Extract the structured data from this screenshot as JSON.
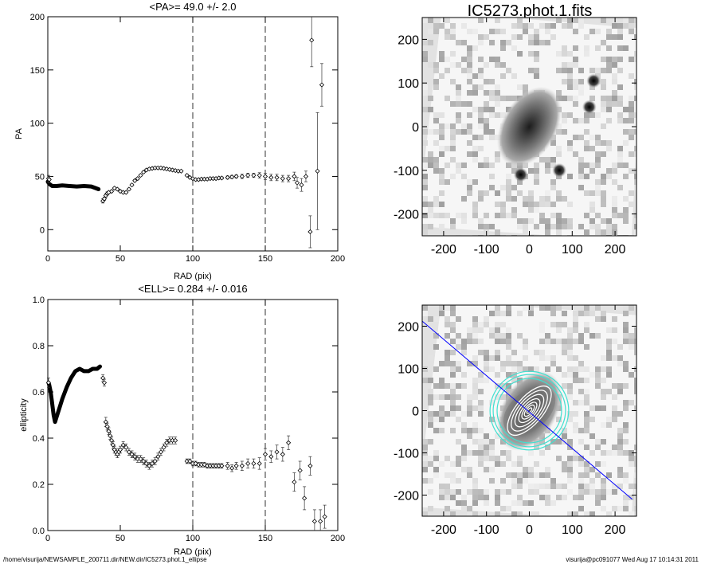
{
  "footer": {
    "left": "/home/visurija/NEWSAMPLE_200711.dir/NEW.dir/IC5273.phot.1_ellipse",
    "right": "visurija@pc091077  Wed Aug 17 10:14:31 2011"
  },
  "chart_data": [
    {
      "type": "scatter",
      "title": "<PA>=  49.0 +/-   2.0",
      "xlabel": "RAD (pix)",
      "ylabel": "PA",
      "xlim": [
        0,
        200
      ],
      "ylim": [
        -20,
        200
      ],
      "xticks": [
        0,
        50,
        100,
        150,
        200
      ],
      "yticks": [
        0,
        50,
        100,
        150,
        200
      ],
      "vlines": [
        100,
        150
      ],
      "marker": "diamond",
      "dense_curve": [
        [
          0,
          45
        ],
        [
          1,
          43
        ],
        [
          3,
          41
        ],
        [
          6,
          41
        ],
        [
          10,
          41.5
        ],
        [
          15,
          41
        ],
        [
          20,
          40.5
        ],
        [
          25,
          41
        ],
        [
          30,
          40.5
        ],
        [
          35,
          38
        ]
      ],
      "points": [
        {
          "x": 0.5,
          "y": 48,
          "e": 3
        },
        {
          "x": 1,
          "y": 47,
          "e": 3
        },
        {
          "x": 38,
          "y": 27,
          "e": 2
        },
        {
          "x": 39,
          "y": 29,
          "e": 1.5
        },
        {
          "x": 40,
          "y": 32,
          "e": 1.5
        },
        {
          "x": 41,
          "y": 34,
          "e": 1.5
        },
        {
          "x": 42,
          "y": 35,
          "e": 1
        },
        {
          "x": 44,
          "y": 36,
          "e": 1
        },
        {
          "x": 46,
          "y": 39,
          "e": 1
        },
        {
          "x": 48,
          "y": 38,
          "e": 1
        },
        {
          "x": 50,
          "y": 36,
          "e": 1
        },
        {
          "x": 52,
          "y": 35,
          "e": 1
        },
        {
          "x": 54,
          "y": 35,
          "e": 1
        },
        {
          "x": 56,
          "y": 38,
          "e": 1
        },
        {
          "x": 58,
          "y": 42,
          "e": 1
        },
        {
          "x": 60,
          "y": 46,
          "e": 1
        },
        {
          "x": 62,
          "y": 48,
          "e": 1
        },
        {
          "x": 64,
          "y": 51,
          "e": 1
        },
        {
          "x": 66,
          "y": 54,
          "e": 1
        },
        {
          "x": 68,
          "y": 56,
          "e": 1
        },
        {
          "x": 70,
          "y": 57,
          "e": 1
        },
        {
          "x": 72,
          "y": 57.5,
          "e": 1
        },
        {
          "x": 74,
          "y": 58,
          "e": 1
        },
        {
          "x": 76,
          "y": 58,
          "e": 1
        },
        {
          "x": 78,
          "y": 58,
          "e": 1
        },
        {
          "x": 80,
          "y": 57.5,
          "e": 1
        },
        {
          "x": 82,
          "y": 57,
          "e": 1
        },
        {
          "x": 84,
          "y": 56.5,
          "e": 1
        },
        {
          "x": 86,
          "y": 56,
          "e": 1
        },
        {
          "x": 88,
          "y": 55.5,
          "e": 1
        },
        {
          "x": 90,
          "y": 55,
          "e": 1
        },
        {
          "x": 92,
          "y": 55,
          "e": 1
        },
        {
          "x": 96,
          "y": 51,
          "e": 1
        },
        {
          "x": 98,
          "y": 49,
          "e": 1
        },
        {
          "x": 100,
          "y": 48,
          "e": 1
        },
        {
          "x": 102,
          "y": 47,
          "e": 1
        },
        {
          "x": 104,
          "y": 47,
          "e": 1
        },
        {
          "x": 106,
          "y": 47.5,
          "e": 1
        },
        {
          "x": 108,
          "y": 47.5,
          "e": 1
        },
        {
          "x": 110,
          "y": 47.5,
          "e": 1
        },
        {
          "x": 112,
          "y": 48,
          "e": 1
        },
        {
          "x": 114,
          "y": 48,
          "e": 1
        },
        {
          "x": 116,
          "y": 48,
          "e": 1
        },
        {
          "x": 118,
          "y": 48.5,
          "e": 1
        },
        {
          "x": 120,
          "y": 48.5,
          "e": 1
        },
        {
          "x": 124,
          "y": 49,
          "e": 1.5
        },
        {
          "x": 127,
          "y": 49.5,
          "e": 1.5
        },
        {
          "x": 130,
          "y": 50,
          "e": 1.5
        },
        {
          "x": 134,
          "y": 50,
          "e": 2
        },
        {
          "x": 138,
          "y": 51,
          "e": 2
        },
        {
          "x": 142,
          "y": 51,
          "e": 2
        },
        {
          "x": 146,
          "y": 51,
          "e": 2.5
        },
        {
          "x": 150,
          "y": 50,
          "e": 3
        },
        {
          "x": 154,
          "y": 49,
          "e": 3
        },
        {
          "x": 158,
          "y": 49,
          "e": 3
        },
        {
          "x": 162,
          "y": 48,
          "e": 3
        },
        {
          "x": 166,
          "y": 48,
          "e": 3
        },
        {
          "x": 170,
          "y": 50,
          "e": 4
        },
        {
          "x": 172,
          "y": 44,
          "e": 5
        },
        {
          "x": 175,
          "y": 42,
          "e": 6
        },
        {
          "x": 178,
          "y": 50,
          "e": 5
        },
        {
          "x": 181,
          "y": -2,
          "e": 15
        },
        {
          "x": 182,
          "y": 178,
          "e": 25
        },
        {
          "x": 186,
          "y": 55,
          "e": 55
        },
        {
          "x": 189,
          "y": 136,
          "e": 20
        }
      ]
    },
    {
      "type": "scatter",
      "title": "<ELL>= 0.284 +/-  0.016",
      "xlabel": "RAD (pix)",
      "ylabel": "ellipticity",
      "xlim": [
        0,
        200
      ],
      "ylim": [
        0,
        1
      ],
      "xticks": [
        0,
        50,
        100,
        150,
        200
      ],
      "yticks": [
        0.0,
        0.2,
        0.4,
        0.6,
        0.8,
        1.0
      ],
      "vlines": [
        100,
        150
      ],
      "marker": "diamond",
      "dense_curve": [
        [
          0.5,
          0.64
        ],
        [
          1,
          0.63
        ],
        [
          2,
          0.6
        ],
        [
          3,
          0.55
        ],
        [
          4,
          0.5
        ],
        [
          5,
          0.47
        ],
        [
          6,
          0.49
        ],
        [
          8,
          0.53
        ],
        [
          10,
          0.57
        ],
        [
          13,
          0.62
        ],
        [
          16,
          0.66
        ],
        [
          19,
          0.69
        ],
        [
          22,
          0.7
        ],
        [
          25,
          0.69
        ],
        [
          28,
          0.69
        ],
        [
          31,
          0.7
        ],
        [
          34,
          0.7
        ],
        [
          36,
          0.71
        ]
      ],
      "points": [
        {
          "x": 0.5,
          "y": 0.64,
          "e": 0.02
        },
        {
          "x": 38,
          "y": 0.66,
          "e": 0.015
        },
        {
          "x": 39,
          "y": 0.64,
          "e": 0.015
        },
        {
          "x": 40,
          "y": 0.47,
          "e": 0.02
        },
        {
          "x": 41,
          "y": 0.45,
          "e": 0.015
        },
        {
          "x": 42,
          "y": 0.43,
          "e": 0.015
        },
        {
          "x": 43,
          "y": 0.41,
          "e": 0.015
        },
        {
          "x": 44,
          "y": 0.39,
          "e": 0.015
        },
        {
          "x": 45,
          "y": 0.37,
          "e": 0.015
        },
        {
          "x": 46,
          "y": 0.35,
          "e": 0.015
        },
        {
          "x": 47,
          "y": 0.34,
          "e": 0.015
        },
        {
          "x": 48,
          "y": 0.33,
          "e": 0.015
        },
        {
          "x": 49,
          "y": 0.34,
          "e": 0.015
        },
        {
          "x": 50,
          "y": 0.35,
          "e": 0.015
        },
        {
          "x": 52,
          "y": 0.37,
          "e": 0.015
        },
        {
          "x": 54,
          "y": 0.36,
          "e": 0.015
        },
        {
          "x": 56,
          "y": 0.34,
          "e": 0.015
        },
        {
          "x": 58,
          "y": 0.33,
          "e": 0.015
        },
        {
          "x": 60,
          "y": 0.32,
          "e": 0.015
        },
        {
          "x": 62,
          "y": 0.31,
          "e": 0.015
        },
        {
          "x": 64,
          "y": 0.31,
          "e": 0.015
        },
        {
          "x": 66,
          "y": 0.3,
          "e": 0.015
        },
        {
          "x": 68,
          "y": 0.29,
          "e": 0.015
        },
        {
          "x": 70,
          "y": 0.28,
          "e": 0.015
        },
        {
          "x": 72,
          "y": 0.29,
          "e": 0.015
        },
        {
          "x": 74,
          "y": 0.3,
          "e": 0.015
        },
        {
          "x": 76,
          "y": 0.32,
          "e": 0.015
        },
        {
          "x": 78,
          "y": 0.34,
          "e": 0.015
        },
        {
          "x": 80,
          "y": 0.36,
          "e": 0.015
        },
        {
          "x": 82,
          "y": 0.38,
          "e": 0.015
        },
        {
          "x": 84,
          "y": 0.39,
          "e": 0.015
        },
        {
          "x": 86,
          "y": 0.39,
          "e": 0.015
        },
        {
          "x": 88,
          "y": 0.39,
          "e": 0.015
        },
        {
          "x": 96,
          "y": 0.3,
          "e": 0.01
        },
        {
          "x": 98,
          "y": 0.3,
          "e": 0.01
        },
        {
          "x": 100,
          "y": 0.29,
          "e": 0.01
        },
        {
          "x": 102,
          "y": 0.29,
          "e": 0.01
        },
        {
          "x": 104,
          "y": 0.285,
          "e": 0.01
        },
        {
          "x": 106,
          "y": 0.285,
          "e": 0.01
        },
        {
          "x": 108,
          "y": 0.285,
          "e": 0.01
        },
        {
          "x": 110,
          "y": 0.28,
          "e": 0.01
        },
        {
          "x": 112,
          "y": 0.28,
          "e": 0.01
        },
        {
          "x": 114,
          "y": 0.28,
          "e": 0.01
        },
        {
          "x": 116,
          "y": 0.28,
          "e": 0.01
        },
        {
          "x": 118,
          "y": 0.28,
          "e": 0.01
        },
        {
          "x": 120,
          "y": 0.28,
          "e": 0.01
        },
        {
          "x": 124,
          "y": 0.28,
          "e": 0.015
        },
        {
          "x": 127,
          "y": 0.27,
          "e": 0.015
        },
        {
          "x": 130,
          "y": 0.28,
          "e": 0.015
        },
        {
          "x": 134,
          "y": 0.28,
          "e": 0.02
        },
        {
          "x": 138,
          "y": 0.29,
          "e": 0.02
        },
        {
          "x": 142,
          "y": 0.29,
          "e": 0.02
        },
        {
          "x": 146,
          "y": 0.29,
          "e": 0.025
        },
        {
          "x": 150,
          "y": 0.33,
          "e": 0.025
        },
        {
          "x": 154,
          "y": 0.32,
          "e": 0.025
        },
        {
          "x": 158,
          "y": 0.34,
          "e": 0.03
        },
        {
          "x": 162,
          "y": 0.33,
          "e": 0.03
        },
        {
          "x": 166,
          "y": 0.38,
          "e": 0.03
        },
        {
          "x": 170,
          "y": 0.21,
          "e": 0.04
        },
        {
          "x": 174,
          "y": 0.26,
          "e": 0.04
        },
        {
          "x": 177,
          "y": 0.14,
          "e": 0.05
        },
        {
          "x": 181,
          "y": 0.28,
          "e": 0.04
        },
        {
          "x": 184,
          "y": 0.04,
          "e": 0.05
        },
        {
          "x": 188,
          "y": 0.04,
          "e": 0.05
        },
        {
          "x": 191,
          "y": 0.06,
          "e": 0.05
        }
      ]
    },
    {
      "type": "heatmap",
      "title": "IC5273.phot.1.fits",
      "xlim": [
        -250,
        250
      ],
      "ylim": [
        -250,
        250
      ],
      "xticks": [
        -200,
        -100,
        0,
        100,
        200
      ],
      "yticks": [
        -200,
        -100,
        0,
        100,
        200
      ],
      "galaxy": {
        "cx": 0,
        "cy": 0,
        "a": 75,
        "b": 48,
        "pa_deg": 49
      },
      "stars": [
        [
          150,
          105
        ],
        [
          140,
          45
        ],
        [
          -20,
          -110
        ],
        [
          70,
          -100
        ]
      ]
    },
    {
      "type": "heatmap",
      "title": "",
      "xlim": [
        -250,
        250
      ],
      "ylim": [
        -250,
        250
      ],
      "xticks": [
        -200,
        -100,
        0,
        100,
        200
      ],
      "yticks": [
        -200,
        -100,
        0,
        100,
        200
      ],
      "galaxy": {
        "cx": 0,
        "cy": 0,
        "a": 75,
        "b": 48,
        "pa_deg": 49
      },
      "white_contours": [
        8,
        16,
        24,
        34,
        46,
        58,
        70
      ],
      "cyan_contours": [
        82,
        92,
        100
      ],
      "colors": {
        "contour": "#ffffff",
        "outer": "#40e0d0",
        "line": "#0000ff"
      },
      "line": {
        "x1": -250,
        "y1": 212,
        "x2": 240,
        "y2": -210
      }
    }
  ]
}
